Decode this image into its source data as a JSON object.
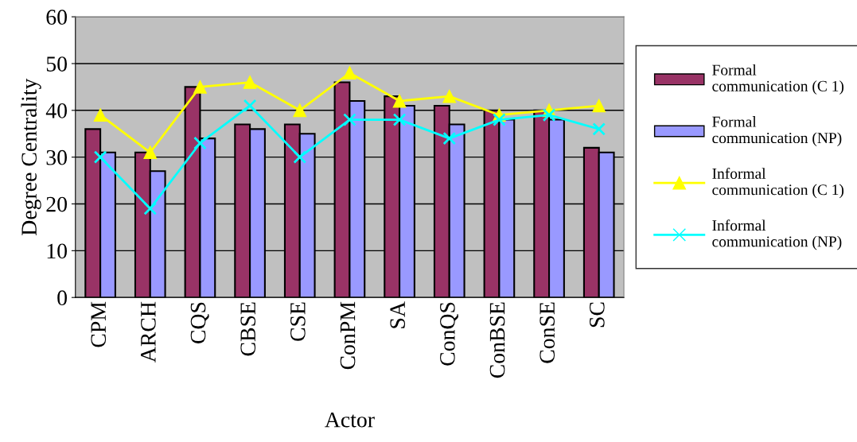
{
  "chart_data": {
    "type": "bar",
    "xlabel": "Actor",
    "ylabel": "Degree Centrality",
    "categories": [
      "CPM",
      "ARCH",
      "CQS",
      "CBSE",
      "CSE",
      "ConPM",
      "SA",
      "ConQS",
      "ConBSE",
      "ConSE",
      "SC"
    ],
    "series": [
      {
        "name": "Formal communication (C 1)",
        "color": "#993366",
        "values": [
          36,
          31,
          45,
          37,
          37,
          46,
          43,
          41,
          40,
          40,
          32
        ]
      },
      {
        "name": "Formal communication (NP)",
        "color": "#9999ff",
        "values": [
          31,
          27,
          34,
          36,
          35,
          42,
          41,
          37,
          38,
          38,
          31
        ]
      },
      {
        "name": "Informal communication (C 1)",
        "type": "line",
        "color": "#ffff00",
        "marker": "triangle",
        "values": [
          39,
          31,
          45,
          46,
          40,
          48,
          42,
          43,
          39,
          40,
          41
        ]
      },
      {
        "name": "Informal communication (NP)",
        "type": "line",
        "color": "#00ffff",
        "marker": "cross",
        "values": [
          30,
          19,
          33,
          41,
          30,
          38,
          38,
          34,
          38,
          39,
          36
        ]
      }
    ],
    "ylim": [
      0,
      60
    ],
    "yticks": [
      0,
      10,
      20,
      30,
      40,
      50,
      60
    ],
    "grid": "y",
    "legend": "right"
  }
}
